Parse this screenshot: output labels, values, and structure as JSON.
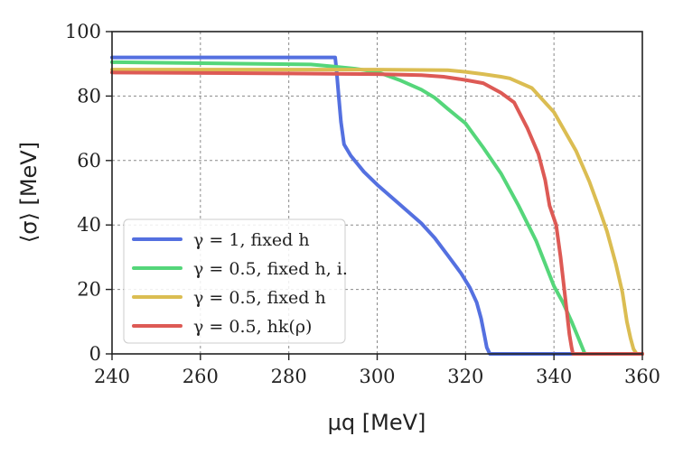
{
  "chart_data": {
    "type": "line",
    "title": "",
    "xlabel": "μq [MeV]",
    "ylabel": "⟨σ⟩ [MeV]",
    "xlim": [
      240,
      360
    ],
    "ylim": [
      0,
      100
    ],
    "xticks": [
      240,
      260,
      280,
      300,
      320,
      340,
      360
    ],
    "yticks": [
      0,
      20,
      40,
      60,
      80,
      100
    ],
    "grid": true,
    "legend_position": "lower-left",
    "series": [
      {
        "name": "γ = 1, fixed h",
        "color": "#5470e0",
        "x": [
          240,
          290.5,
          290.8,
          291.3,
          291.8,
          292.5,
          294,
          297,
          300,
          305,
          310,
          313,
          316,
          319,
          321,
          322.5,
          323.5,
          324.3,
          324.8,
          325.5,
          360
        ],
        "y": [
          92,
          92,
          88,
          80,
          72,
          65,
          61.5,
          56.5,
          52.5,
          46.5,
          40.5,
          36,
          30.5,
          25,
          20.5,
          16,
          11,
          5.5,
          2,
          0,
          0
        ]
      },
      {
        "name": "γ = 0.5, fixed h, i.",
        "color": "#55d67a",
        "x": [
          240,
          285,
          290,
          295,
          300,
          305,
          310,
          313,
          316,
          320,
          324,
          328,
          332,
          336,
          340,
          342,
          344,
          345.5,
          347,
          360
        ],
        "y": [
          90.5,
          89.8,
          89.2,
          88.5,
          87.5,
          85,
          82,
          79.5,
          76,
          71.5,
          64,
          56,
          46,
          35,
          21,
          16,
          10,
          5,
          0,
          0
        ]
      },
      {
        "name": "γ = 0.5, fixed h",
        "color": "#dbbd52",
        "x": [
          240,
          300,
          310,
          316,
          320,
          324,
          328,
          330,
          335,
          340,
          345,
          348,
          350,
          352,
          354,
          355.5,
          356.5,
          357.3,
          358,
          358.7,
          360
        ],
        "y": [
          88.2,
          88.2,
          88.1,
          88,
          87.5,
          86.8,
          86,
          85.5,
          82.5,
          75,
          63,
          53.5,
          46,
          38,
          28,
          19,
          10,
          5,
          1.5,
          0,
          0
        ]
      },
      {
        "name": "γ = 0.5, hk(ρ)",
        "color": "#dd5a55",
        "x": [
          240,
          280,
          300,
          310,
          315,
          320,
          324,
          328,
          331,
          334,
          336.5,
          338,
          339,
          340.5,
          341.5,
          342.5,
          343.5,
          344,
          344.3,
          360
        ],
        "y": [
          87.3,
          87,
          86.8,
          86.5,
          86,
          85,
          84,
          81,
          78,
          70,
          62,
          54,
          46,
          40,
          30,
          18,
          6,
          2,
          0,
          0
        ]
      }
    ]
  }
}
